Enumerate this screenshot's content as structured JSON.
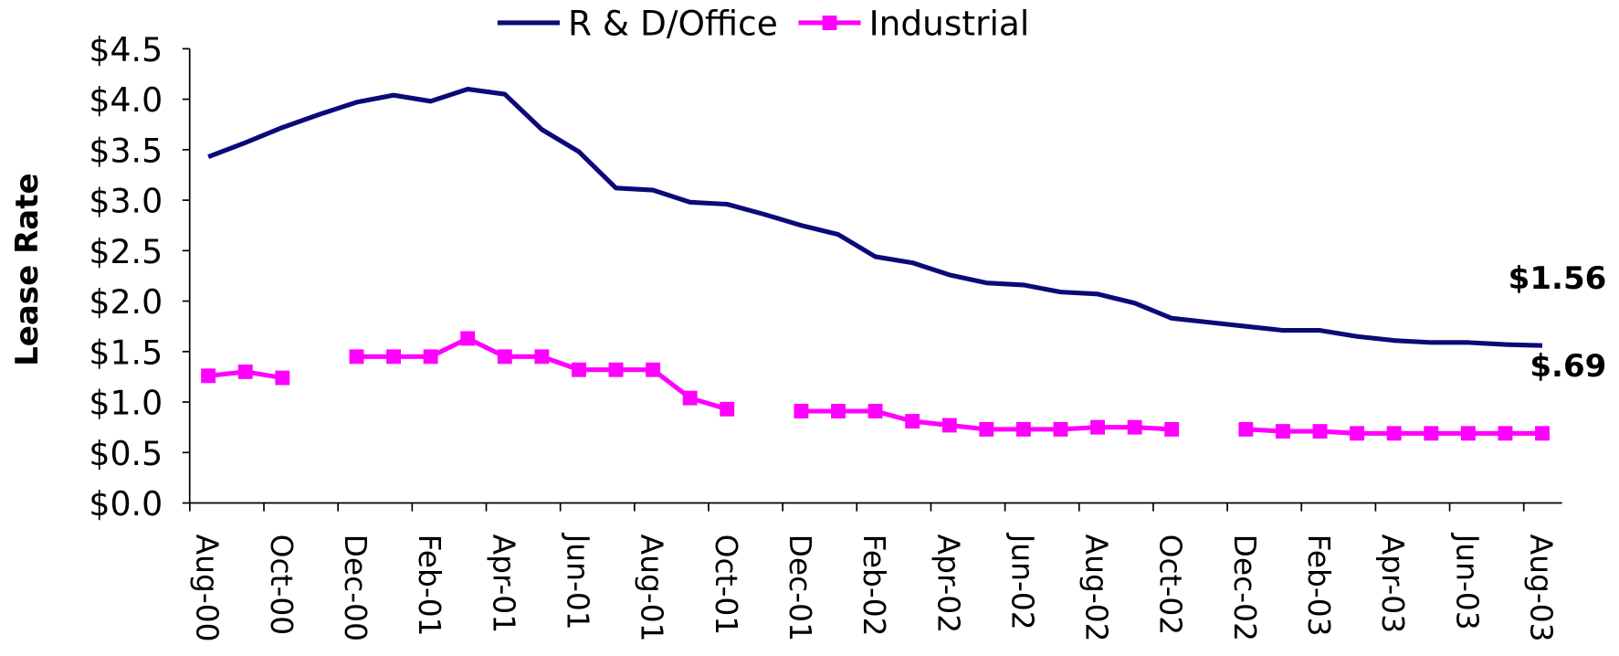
{
  "chart_data": {
    "type": "line",
    "y_label": "Lease Rate",
    "categories": [
      "Aug-00",
      null,
      "Oct-00",
      null,
      "Dec-00",
      null,
      "Feb-01",
      null,
      "Apr-01",
      null,
      "Jun-01",
      null,
      "Aug-01",
      null,
      "Oct-01",
      null,
      "Dec-01",
      null,
      "Feb-02",
      null,
      "Apr-02",
      null,
      "Jun-02",
      null,
      "Aug-02",
      null,
      "Oct-02",
      null,
      "Dec-02",
      null,
      "Feb-03",
      null,
      "Apr-03",
      null,
      "Jun-03",
      null,
      "Aug-03"
    ],
    "series": [
      {
        "name": "R & D/Office",
        "color": "#0a0a78",
        "marker": false,
        "values": [
          3.43,
          3.57,
          3.72,
          3.85,
          3.97,
          4.04,
          3.98,
          4.1,
          4.05,
          3.7,
          3.48,
          3.12,
          3.1,
          2.98,
          2.96,
          2.86,
          2.75,
          2.66,
          2.44,
          2.38,
          2.26,
          2.18,
          2.16,
          2.09,
          2.07,
          1.98,
          1.83,
          1.79,
          1.75,
          1.71,
          1.71,
          1.65,
          1.61,
          1.59,
          1.59,
          1.57,
          1.56
        ]
      },
      {
        "name": "Industrial",
        "color": "#ff00ff",
        "marker": true,
        "values": [
          1.26,
          1.3,
          1.24,
          null,
          1.45,
          1.45,
          1.45,
          1.63,
          1.45,
          1.45,
          1.32,
          1.32,
          1.32,
          1.04,
          0.93,
          null,
          0.91,
          0.91,
          0.91,
          0.81,
          0.77,
          0.73,
          0.73,
          0.73,
          0.75,
          0.75,
          0.73,
          null,
          0.73,
          0.71,
          0.71,
          0.69,
          0.69,
          0.69,
          0.69,
          0.69,
          0.69
        ]
      }
    ],
    "annotations": [
      {
        "text": "$1.56",
        "series": 0
      },
      {
        "text": "$.69",
        "series": 1
      }
    ],
    "ylim": [
      0,
      4.5
    ],
    "yticks": [
      {
        "value": 0,
        "label": "$0.0"
      },
      {
        "value": 0.5,
        "label": "$0.5"
      },
      {
        "value": 1,
        "label": "$1.0"
      },
      {
        "value": 1.5,
        "label": "$1.5"
      },
      {
        "value": 2,
        "label": "$2.0"
      },
      {
        "value": 2.5,
        "label": "$2.5"
      },
      {
        "value": 3,
        "label": "$3.0"
      },
      {
        "value": 3.5,
        "label": "$3.5"
      },
      {
        "value": 4,
        "label": "$4.0"
      },
      {
        "value": 4.5,
        "label": "$4.5"
      }
    ],
    "grid": false,
    "legend": "top"
  }
}
